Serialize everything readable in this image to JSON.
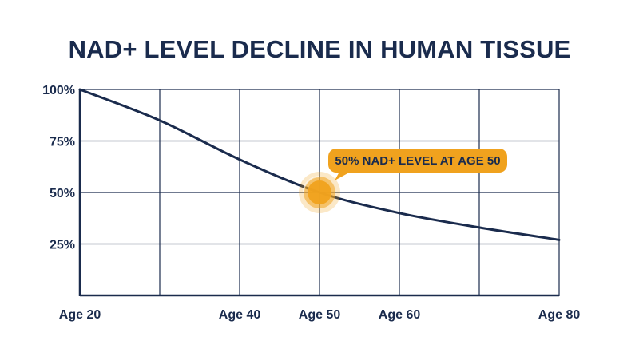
{
  "chart_data": {
    "type": "line",
    "title": "NAD+ LEVEL DECLINE IN HUMAN TISSUE",
    "xlabel": "",
    "ylabel": "",
    "x_tick_labels": [
      {
        "x": 20,
        "label": "Age 20"
      },
      {
        "x": 40,
        "label": "Age 40"
      },
      {
        "x": 50,
        "label": "Age 50"
      },
      {
        "x": 60,
        "label": "Age 60"
      },
      {
        "x": 80,
        "label": "Age 80"
      }
    ],
    "y_tick_labels": [
      {
        "y": 100,
        "label": "100%"
      },
      {
        "y": 75,
        "label": "75%"
      },
      {
        "y": 50,
        "label": "50%"
      },
      {
        "y": 25,
        "label": "25%"
      }
    ],
    "xlim": [
      20,
      80
    ],
    "ylim": [
      0,
      100
    ],
    "grid": true,
    "series": [
      {
        "x": [
          20,
          30,
          40,
          50,
          60,
          70,
          80
        ],
        "y": [
          100,
          85,
          66,
          50,
          40,
          33,
          27
        ]
      }
    ],
    "annotation": {
      "text": "50% NAD+ LEVEL AT AGE 50",
      "x": 50,
      "y": 50
    },
    "colors": {
      "line": "#1a2b4d",
      "grid": "#1a2b4d",
      "highlight": "#f0a21e",
      "callout": "#f0a21e"
    }
  }
}
